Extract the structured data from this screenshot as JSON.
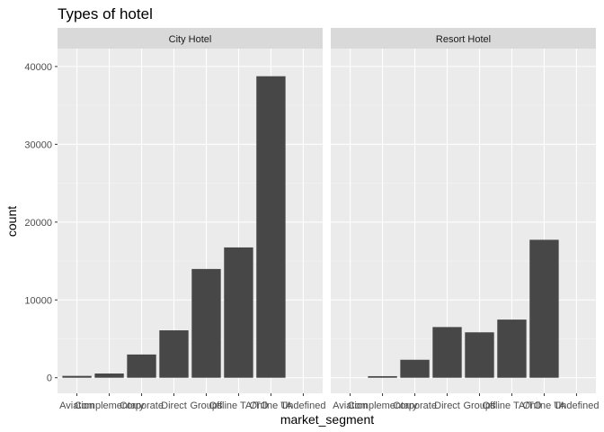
{
  "chart_data": {
    "type": "bar",
    "title": "Types of hotel",
    "xlabel": "market_segment",
    "ylabel": "count",
    "ylim": [
      -2000,
      42300
    ],
    "yticks": [
      0,
      10000,
      20000,
      30000,
      40000
    ],
    "ytick_labels": [
      "0",
      "10000",
      "20000",
      "30000",
      "40000"
    ],
    "categories": [
      "Aviation",
      "Complementary",
      "Corporate",
      "Direct",
      "Groups",
      "Offline TA/TO",
      "Online TA",
      "Undefined"
    ],
    "panels": [
      {
        "name": "City Hotel",
        "values": [
          237,
          542,
          2986,
          6093,
          13975,
          16747,
          38748,
          2
        ]
      },
      {
        "name": "Resort Hotel",
        "values": [
          0,
          201,
          2309,
          6513,
          5836,
          7472,
          17729,
          0
        ]
      }
    ],
    "colors": {
      "bar": "#474747",
      "panel": "#ebebeb",
      "strip": "#d9d9d9",
      "grid_major": "#ffffff"
    },
    "grid": true
  }
}
